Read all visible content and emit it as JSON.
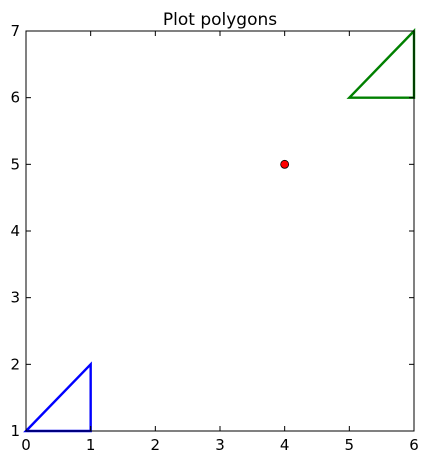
{
  "chart_data": {
    "type": "line",
    "title": "Plot polygons",
    "xlabel": "",
    "ylabel": "",
    "xlim": [
      0,
      6
    ],
    "ylim": [
      1,
      7
    ],
    "grid": false,
    "xticks": [
      "0",
      "1",
      "2",
      "3",
      "4",
      "5",
      "6"
    ],
    "yticks": [
      "1",
      "2",
      "3",
      "4",
      "5",
      "6",
      "7"
    ],
    "polygons": [
      {
        "color": "#0000ff",
        "points": [
          [
            0,
            1
          ],
          [
            1,
            2
          ],
          [
            1,
            1
          ]
        ]
      },
      {
        "color": "#008000",
        "points": [
          [
            5,
            6
          ],
          [
            6,
            7
          ],
          [
            6,
            6
          ]
        ]
      }
    ],
    "points": [
      {
        "color": "#ff0000",
        "x": 4,
        "y": 5
      }
    ]
  }
}
